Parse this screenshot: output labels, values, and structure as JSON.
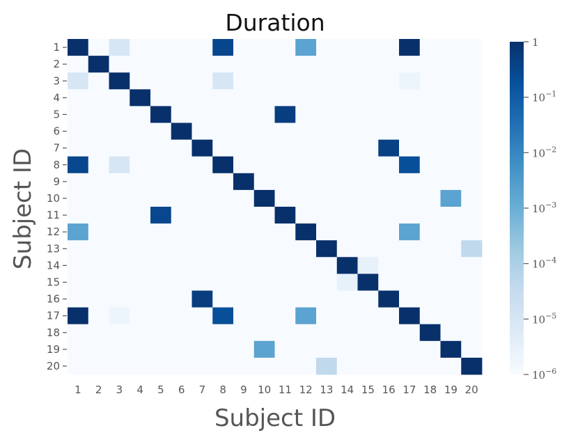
{
  "chart_data": {
    "type": "heatmap",
    "title": "Duration",
    "xlabel": "Subject ID",
    "ylabel": "Subject ID",
    "x_categories": [
      "1",
      "2",
      "3",
      "4",
      "5",
      "6",
      "7",
      "8",
      "9",
      "10",
      "11",
      "12",
      "13",
      "14",
      "15",
      "16",
      "17",
      "18",
      "19",
      "20"
    ],
    "y_categories": [
      "1",
      "2",
      "3",
      "4",
      "5",
      "6",
      "7",
      "8",
      "9",
      "10",
      "11",
      "12",
      "13",
      "14",
      "15",
      "16",
      "17",
      "18",
      "19",
      "20"
    ],
    "color_scale": "log",
    "colormap": "Blues",
    "vmin": 1e-06,
    "vmax": 1,
    "colorbar_ticks": [
      {
        "value": 1,
        "base": "1",
        "exp": ""
      },
      {
        "value": 0.1,
        "base": "10",
        "exp": "−1"
      },
      {
        "value": 0.01,
        "base": "10",
        "exp": "−2"
      },
      {
        "value": 0.001,
        "base": "10",
        "exp": "−3"
      },
      {
        "value": 0.0001,
        "base": "10",
        "exp": "−4"
      },
      {
        "value": 1e-05,
        "base": "10",
        "exp": "−5"
      },
      {
        "value": 1e-06,
        "base": "10",
        "exp": "−6"
      }
    ],
    "default_value": 1e-06,
    "cells": [
      {
        "row": "1",
        "col": "1",
        "value": 1
      },
      {
        "row": "1",
        "col": "3",
        "value": 1e-05
      },
      {
        "row": "1",
        "col": "8",
        "value": 0.3
      },
      {
        "row": "1",
        "col": "12",
        "value": 0.002
      },
      {
        "row": "1",
        "col": "17",
        "value": 1
      },
      {
        "row": "2",
        "col": "2",
        "value": 1
      },
      {
        "row": "3",
        "col": "1",
        "value": 1e-05
      },
      {
        "row": "3",
        "col": "3",
        "value": 1
      },
      {
        "row": "3",
        "col": "8",
        "value": 1e-05
      },
      {
        "row": "3",
        "col": "17",
        "value": 2e-06
      },
      {
        "row": "4",
        "col": "4",
        "value": 1
      },
      {
        "row": "5",
        "col": "5",
        "value": 1
      },
      {
        "row": "5",
        "col": "11",
        "value": 0.5
      },
      {
        "row": "6",
        "col": "6",
        "value": 1
      },
      {
        "row": "7",
        "col": "7",
        "value": 1
      },
      {
        "row": "7",
        "col": "16",
        "value": 0.4
      },
      {
        "row": "8",
        "col": "1",
        "value": 0.3
      },
      {
        "row": "8",
        "col": "3",
        "value": 1e-05
      },
      {
        "row": "8",
        "col": "8",
        "value": 1
      },
      {
        "row": "8",
        "col": "17",
        "value": 0.2
      },
      {
        "row": "9",
        "col": "9",
        "value": 1
      },
      {
        "row": "10",
        "col": "10",
        "value": 1
      },
      {
        "row": "10",
        "col": "19",
        "value": 0.002
      },
      {
        "row": "11",
        "col": "5",
        "value": 0.3
      },
      {
        "row": "11",
        "col": "11",
        "value": 1
      },
      {
        "row": "12",
        "col": "1",
        "value": 0.002
      },
      {
        "row": "12",
        "col": "12",
        "value": 1
      },
      {
        "row": "12",
        "col": "17",
        "value": 0.002
      },
      {
        "row": "13",
        "col": "13",
        "value": 1
      },
      {
        "row": "13",
        "col": "20",
        "value": 4e-05
      },
      {
        "row": "14",
        "col": "14",
        "value": 1
      },
      {
        "row": "14",
        "col": "15",
        "value": 3e-06
      },
      {
        "row": "15",
        "col": "14",
        "value": 3e-06
      },
      {
        "row": "15",
        "col": "15",
        "value": 1
      },
      {
        "row": "16",
        "col": "7",
        "value": 0.5
      },
      {
        "row": "16",
        "col": "16",
        "value": 1
      },
      {
        "row": "17",
        "col": "1",
        "value": 1
      },
      {
        "row": "17",
        "col": "3",
        "value": 2e-06
      },
      {
        "row": "17",
        "col": "8",
        "value": 0.2
      },
      {
        "row": "17",
        "col": "12",
        "value": 0.002
      },
      {
        "row": "17",
        "col": "17",
        "value": 1
      },
      {
        "row": "18",
        "col": "18",
        "value": 1
      },
      {
        "row": "19",
        "col": "10",
        "value": 0.002
      },
      {
        "row": "19",
        "col": "19",
        "value": 1
      },
      {
        "row": "20",
        "col": "13",
        "value": 4e-05
      },
      {
        "row": "20",
        "col": "20",
        "value": 1
      }
    ]
  }
}
